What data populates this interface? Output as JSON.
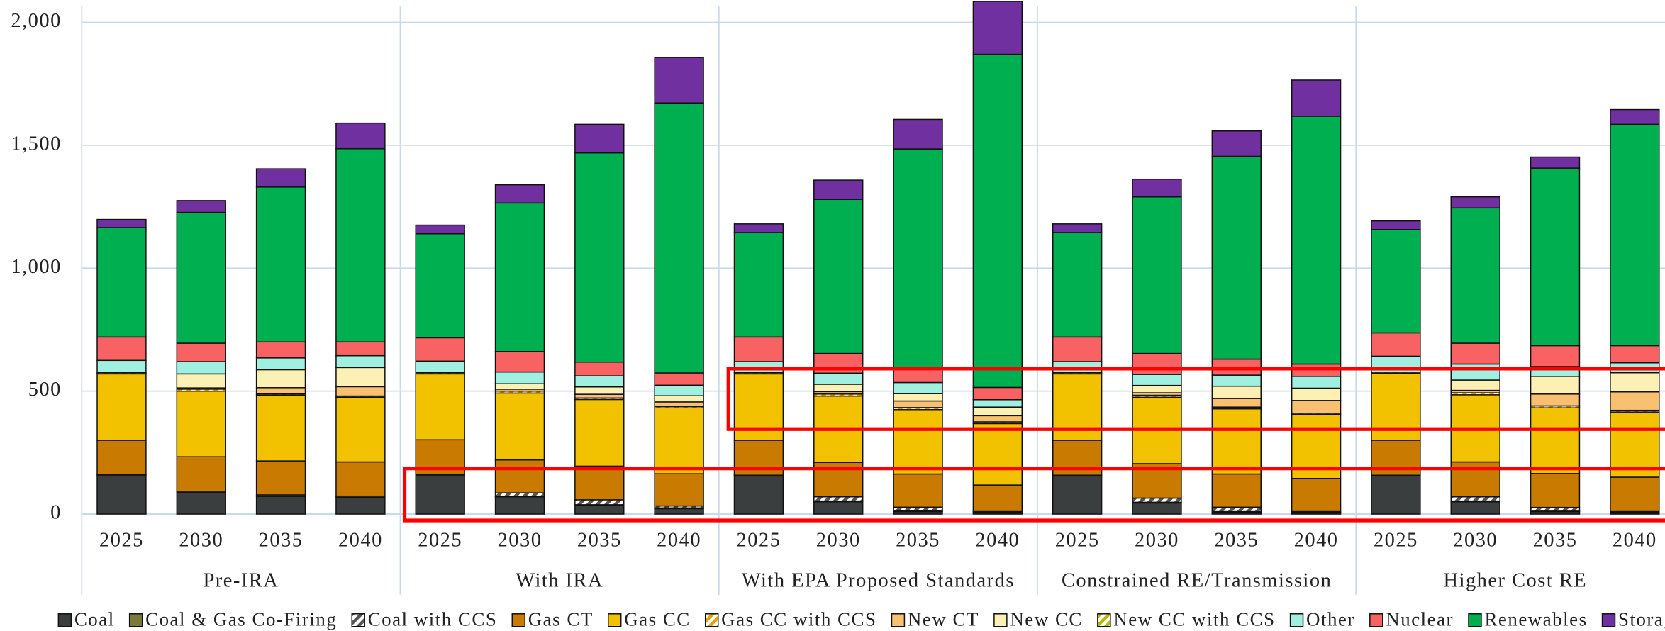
{
  "chart_data": {
    "type": "bar",
    "stacked": true,
    "groups": [
      {
        "name": "Pre-IRA",
        "categories": [
          "2025",
          "2030",
          "2035",
          "2040"
        ]
      },
      {
        "name": "With IRA",
        "categories": [
          "2025",
          "2030",
          "2035",
          "2040"
        ]
      },
      {
        "name": "With EPA Proposed Standards",
        "categories": [
          "2025",
          "2030",
          "2035",
          "2040"
        ]
      },
      {
        "name": "Constrained RE/Transmission",
        "categories": [
          "2025",
          "2030",
          "2035",
          "2040"
        ]
      },
      {
        "name": "Higher Cost RE",
        "categories": [
          "2025",
          "2030",
          "2035",
          "2040"
        ]
      }
    ],
    "series": [
      {
        "name": "Coal",
        "color": "#3a3e3e",
        "values": [
          155,
          88,
          72,
          68,
          155,
          70,
          35,
          22,
          155,
          50,
          10,
          5,
          155,
          45,
          8,
          5,
          155,
          50,
          10,
          5
        ]
      },
      {
        "name": "Coal & Gas Co-Firing",
        "color": "#7a7a3a",
        "values": [
          5,
          5,
          6,
          5,
          5,
          3,
          3,
          3,
          3,
          3,
          3,
          2,
          3,
          3,
          2,
          2,
          3,
          3,
          2,
          2
        ]
      },
      {
        "name": "Coal with CCS",
        "color": "#555555",
        "hatch": true,
        "values": [
          0,
          0,
          0,
          0,
          0,
          13,
          20,
          8,
          0,
          17,
          15,
          3,
          0,
          17,
          18,
          3,
          0,
          17,
          15,
          3
        ]
      },
      {
        "name": "Gas CT",
        "color": "#c97a00",
        "values": [
          140,
          140,
          138,
          139,
          142,
          134,
          137,
          131,
          142,
          140,
          135,
          108,
          142,
          140,
          135,
          135,
          142,
          142,
          138,
          140
        ]
      },
      {
        "name": "Gas CC",
        "color": "#f2c200",
        "values": [
          270,
          267,
          268,
          263,
          268,
          272,
          271,
          268,
          270,
          270,
          262,
          250,
          270,
          270,
          265,
          260,
          272,
          273,
          267,
          265
        ]
      },
      {
        "name": "Gas CC with CCS",
        "color": "#e8a000",
        "hatch": true,
        "values": [
          5,
          8,
          5,
          5,
          5,
          8,
          6,
          6,
          5,
          8,
          8,
          7,
          5,
          8,
          7,
          5,
          5,
          8,
          8,
          7
        ]
      },
      {
        "name": "New CT",
        "color": "#f8c070",
        "values": [
          0,
          5,
          25,
          38,
          0,
          8,
          15,
          18,
          0,
          10,
          27,
          25,
          0,
          10,
          35,
          52,
          0,
          10,
          48,
          75
        ]
      },
      {
        "name": "New CC",
        "color": "#fdf0b4",
        "values": [
          0,
          57,
          73,
          78,
          0,
          22,
          30,
          25,
          0,
          30,
          30,
          35,
          0,
          30,
          50,
          50,
          0,
          42,
          72,
          78
        ]
      },
      {
        "name": "New CC with CCS",
        "color": "#b8b800",
        "hatch": true,
        "values": [
          0,
          0,
          0,
          0,
          0,
          0,
          0,
          0,
          0,
          0,
          0,
          0,
          0,
          0,
          0,
          0,
          0,
          0,
          0,
          0
        ]
      },
      {
        "name": "Other",
        "color": "#9ff0e0",
        "values": [
          50,
          50,
          48,
          48,
          47,
          48,
          45,
          43,
          45,
          45,
          45,
          30,
          45,
          45,
          45,
          48,
          65,
          65,
          40,
          40
        ]
      },
      {
        "name": "Nuclear",
        "color": "#f86262",
        "values": [
          95,
          75,
          65,
          56,
          95,
          83,
          56,
          50,
          100,
          80,
          60,
          50,
          100,
          85,
          65,
          50,
          95,
          85,
          85,
          70
        ]
      },
      {
        "name": "Renewables",
        "color": "#00b050",
        "values": [
          445,
          532,
          630,
          786,
          423,
          604,
          851,
          1098,
          425,
          627,
          890,
          1355,
          425,
          637,
          825,
          1008,
          420,
          550,
          722,
          900
        ]
      },
      {
        "name": "Storage",
        "color": "#7030a0",
        "values": [
          33,
          48,
          74,
          104,
          35,
          74,
          116,
          185,
          35,
          78,
          120,
          215,
          35,
          72,
          103,
          147,
          35,
          45,
          45,
          60
        ]
      }
    ],
    "ylim": [
      0,
      2090
    ],
    "yticks": [
      0,
      500,
      {
        "value": 1000,
        "label": "1,000"
      },
      {
        "value": 1500,
        "label": "1,500"
      },
      {
        "value": 2000,
        "label": "2,000"
      }
    ],
    "grid": true,
    "legend": "bottom"
  }
}
